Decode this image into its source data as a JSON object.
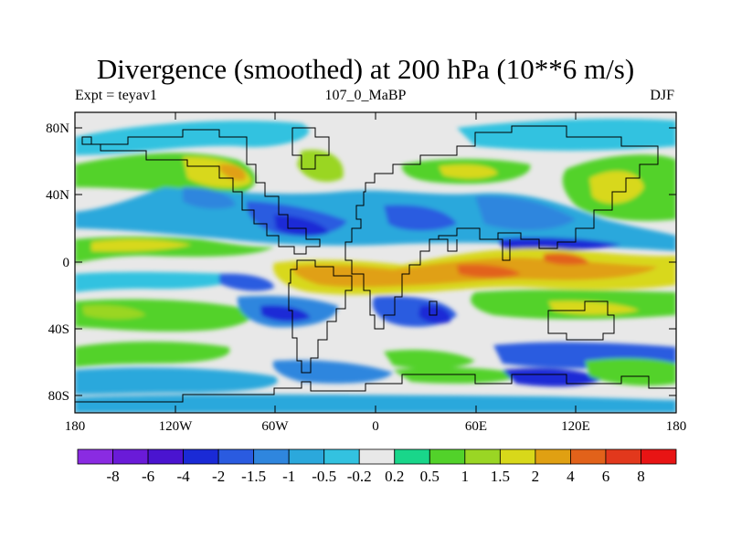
{
  "title": "Divergence (smoothed) at 200 hPa (10**6 m/s)",
  "left_subtitle": "Expt = teyav1",
  "center_subtitle": "107_0_MaBP",
  "right_subtitle": "DJF",
  "lat_labels": [
    "80N",
    "40N",
    "0",
    "40S",
    "80S"
  ],
  "lon_labels": [
    "180",
    "120W",
    "60W",
    "0",
    "60E",
    "120E",
    "180"
  ],
  "colorbar": {
    "labels": [
      "-8",
      "-6",
      "-4",
      "-2",
      "-1.5",
      "-1",
      "-0.5",
      "-0.2",
      "0.2",
      "0.5",
      "1",
      "1.5",
      "2",
      "4",
      "6",
      "8"
    ],
    "colors": [
      "#8a2be2",
      "#6a1bd8",
      "#4a14d0",
      "#1a2ad6",
      "#2a5be0",
      "#2f86de",
      "#2ba8dc",
      "#33c2e0",
      "#e8e8e8",
      "#19d68a",
      "#52d22a",
      "#9ad624",
      "#d8d81a",
      "#e0a012",
      "#e2621a",
      "#e2381c",
      "#e81414"
    ]
  }
}
